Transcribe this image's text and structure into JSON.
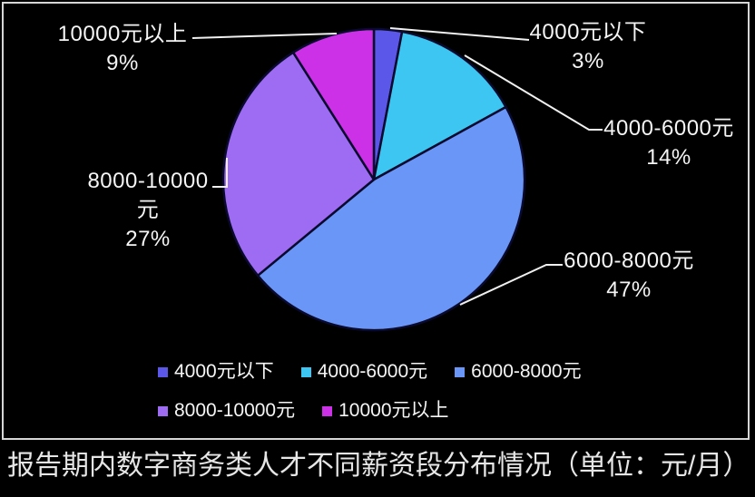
{
  "chart_data": {
    "type": "pie",
    "title": "报告期内数字商务类人才不同薪资段分布情况（单位：元/月）",
    "unit": "元/月",
    "categories": [
      "4000元以下",
      "4000-6000元",
      "6000-8000元",
      "8000-10000元",
      "10000元以上"
    ],
    "values": [
      3,
      14,
      47,
      27,
      9
    ],
    "slices": [
      {
        "label": "4000元以下",
        "pct": "3%",
        "value": 3,
        "color": "#5b57e8"
      },
      {
        "label": "4000-6000元",
        "pct": "14%",
        "value": 14,
        "color": "#3ec6f2"
      },
      {
        "label": "6000-8000元",
        "pct": "47%",
        "value": 47,
        "color": "#6a96f8"
      },
      {
        "label": "8000-10000元",
        "pct": "27%",
        "value": 27,
        "color": "#9d6cf2"
      },
      {
        "label": "10000元以上",
        "pct": "9%",
        "value": 9,
        "color": "#cc31e8"
      }
    ],
    "start_angle_deg": 0,
    "direction": "clockwise",
    "legend_position": "bottom",
    "colors": {
      "background": "#000000",
      "frame_border": "#d6d6d6",
      "text": "#f5f5f5",
      "leader_line": "#f0f0f0",
      "slice_divider": "#0a0a2e"
    }
  },
  "caption": "报告期内数字商务类人才不同薪资段分布情况（单位：元/月）"
}
